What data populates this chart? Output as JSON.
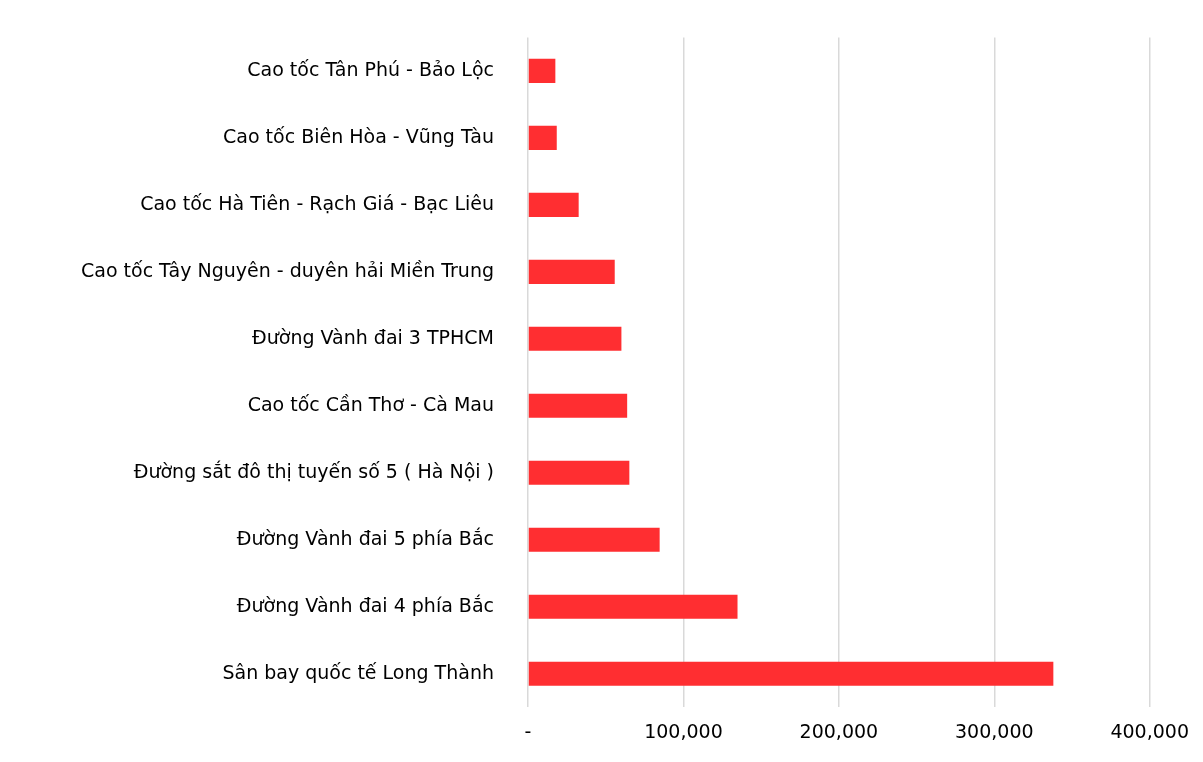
{
  "chart_data": {
    "type": "bar",
    "orientation": "horizontal",
    "categories": [
      "Cao tốc Tân Phú - Bảo Lộc",
      "Cao tốc Biên Hòa - Vũng Tàu",
      "Cao tốc Hà Tiên - Rạch Giá - Bạc Liêu",
      "Cao tốc Tây Nguyên - duyên hải Miền Trung",
      "Đường Vành đai 3 TPHCM",
      "Cao tốc Cần Thơ - Cà Mau",
      "Đường sắt đô thị tuyến số 5 ( Hà Nội )",
      "Đường Vành đai 5 phía Bắc",
      "Đường Vành đai 4 phía Bắc",
      "Sân bay quốc tế Long Thành"
    ],
    "values": [
      17600,
      18500,
      32600,
      55800,
      60100,
      63800,
      65200,
      84700,
      134800,
      338000
    ],
    "color": "#ff2e31",
    "xlim": [
      0,
      400000
    ],
    "xticks": [
      {
        "value": 0,
        "label": "-"
      },
      {
        "value": 100000,
        "label": "100,000"
      },
      {
        "value": 200000,
        "label": "200,000"
      },
      {
        "value": 300000,
        "label": "300,000"
      },
      {
        "value": 400000,
        "label": "400,000"
      }
    ],
    "grid": "x",
    "legend": false
  }
}
